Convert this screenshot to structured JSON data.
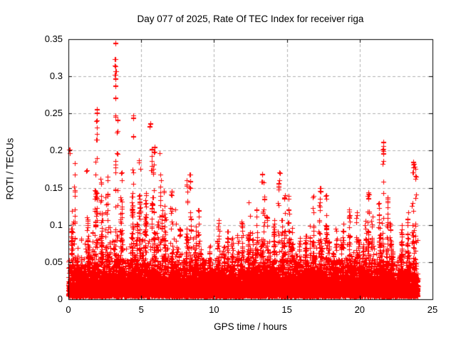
{
  "chart_data": {
    "type": "scatter",
    "title": "Day 077 of 2025, Rate Of TEC Index for receiver riga",
    "xlabel": "GPS time / hours",
    "ylabel": "ROTI / TECUs",
    "xlim": [
      0,
      25
    ],
    "ylim": [
      0,
      0.35
    ],
    "xticks": [
      0,
      5,
      10,
      15,
      20,
      25
    ],
    "xticklabels": [
      "0",
      "5",
      "10",
      "15",
      "20",
      "25"
    ],
    "yticks": [
      0,
      0.05,
      0.1,
      0.15,
      0.2,
      0.25,
      0.3,
      0.35
    ],
    "yticklabels": [
      "0",
      "0.05",
      "0.1",
      "0.15",
      "0.2",
      "0.25",
      "0.3",
      "0.35"
    ],
    "grid": {
      "show": true,
      "style": "dashed",
      "color": "#b0b0b0"
    },
    "legend": {
      "show": false
    },
    "background_color": "#ffffff",
    "border_color": "#000000",
    "text_color": "#000000",
    "series": [
      {
        "name": "ROTI",
        "marker": "plus",
        "color": "#ff0000",
        "marker_size_px": 7,
        "time_coverage_hours": [
          0,
          24
        ],
        "dense_band": {
          "y_min": 0.004,
          "y_max": 0.05
        },
        "envelope_bin_hours": 0.5,
        "envelope_peaks": [
          0.205,
          0.095,
          0.125,
          0.26,
          0.175,
          0.19,
          0.345,
          0.22,
          0.25,
          0.2,
          0.155,
          0.24,
          0.21,
          0.165,
          0.155,
          0.105,
          0.17,
          0.145,
          0.07,
          0.075,
          0.11,
          0.105,
          0.085,
          0.115,
          0.14,
          0.13,
          0.17,
          0.125,
          0.17,
          0.155,
          0.145,
          0.09,
          0.1,
          0.145,
          0.15,
          0.15,
          0.1,
          0.105,
          0.125,
          0.125,
          0.11,
          0.155,
          0.145,
          0.215,
          0.12,
          0.105,
          0.12,
          0.19
        ],
        "outlier_clusters": [
          {
            "t": 0.07,
            "values": [
              0.201,
              0.197
            ]
          },
          {
            "t": 1.24,
            "values": [
              0.173
            ]
          },
          {
            "t": 1.95,
            "values": [
              0.255,
              0.251,
              0.24,
              0.231,
              0.222,
              0.215,
              0.19
            ]
          },
          {
            "t": 3.22,
            "values": [
              0.344,
              0.323,
              0.314,
              0.307,
              0.302,
              0.297,
              0.288,
              0.271,
              0.247
            ]
          },
          {
            "t": 3.35,
            "values": [
              0.241,
              0.226,
              0.196
            ]
          },
          {
            "t": 4.45,
            "values": [
              0.247,
              0.244,
              0.219
            ]
          },
          {
            "t": 5.62,
            "values": [
              0.237,
              0.233
            ]
          },
          {
            "t": 5.71,
            "values": [
              0.201,
              0.193,
              0.186,
              0.179,
              0.174
            ]
          },
          {
            "t": 5.9,
            "values": [
              0.205,
              0.198
            ]
          },
          {
            "t": 8.35,
            "values": [
              0.168,
              0.158,
              0.15
            ]
          },
          {
            "t": 13.3,
            "values": [
              0.168,
              0.158
            ]
          },
          {
            "t": 14.5,
            "values": [
              0.17,
              0.16
            ]
          },
          {
            "t": 17.3,
            "values": [
              0.15,
              0.145
            ]
          },
          {
            "t": 21.62,
            "values": [
              0.211,
              0.206,
              0.202,
              0.199,
              0.196
            ]
          },
          {
            "t": 23.68,
            "values": [
              0.185,
              0.181,
              0.177,
              0.171
            ]
          }
        ]
      }
    ]
  }
}
